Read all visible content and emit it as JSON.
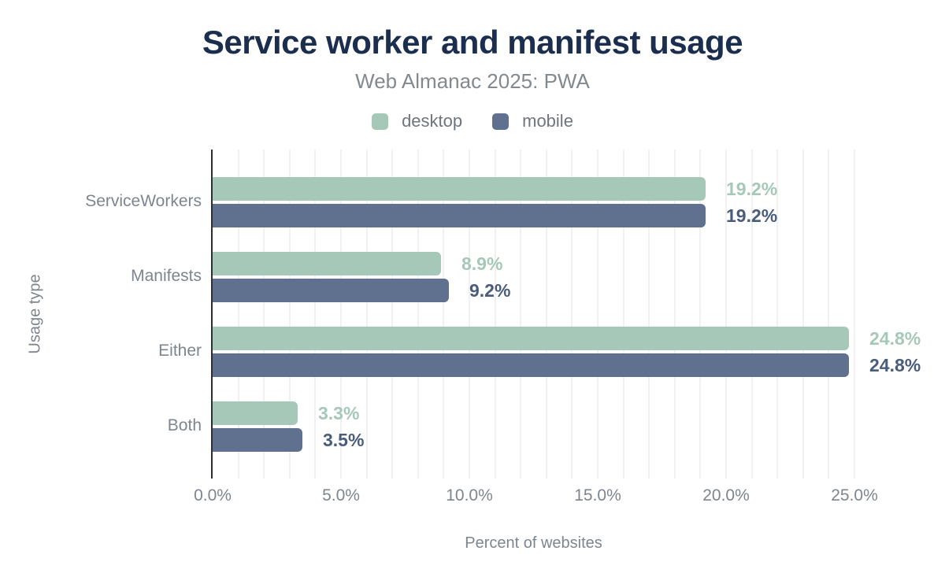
{
  "title": "Service worker and manifest usage",
  "subtitle": "Web Almanac 2025: PWA",
  "legend": [
    {
      "label": "desktop",
      "color": "#a6c8b8"
    },
    {
      "label": "mobile",
      "color": "#5f718e"
    }
  ],
  "colors": {
    "title_navy": "#1b2e4e",
    "muted_gray_text": "#7d858e",
    "desktop_bar": "#a6c8b8",
    "mobile_bar": "#5f718e",
    "desktop_value_label": "#a6c8b8",
    "mobile_value_label": "#4a5c7c",
    "gridline": "#f1f1f3",
    "axis_line": "#2e2e2e",
    "background": "#ffffff"
  },
  "chart_data": {
    "type": "bar",
    "orientation": "horizontal",
    "title": "Service worker and manifest usage",
    "subtitle": "Web Almanac 2025: PWA",
    "categories": [
      "ServiceWorkers",
      "Manifests",
      "Either",
      "Both"
    ],
    "series": [
      {
        "name": "desktop",
        "color": "#a6c8b8",
        "label_color": "#a6c8b8",
        "values": [
          19.2,
          8.9,
          24.8,
          3.3
        ],
        "value_labels": [
          "19.2%",
          "8.9%",
          "24.8%",
          "3.3%"
        ]
      },
      {
        "name": "mobile",
        "color": "#5f718e",
        "label_color": "#4a5c7c",
        "values": [
          19.2,
          9.2,
          24.8,
          3.5
        ],
        "value_labels": [
          "19.2%",
          "9.2%",
          "24.8%",
          "3.5%"
        ]
      }
    ],
    "xlabel": "Percent of websites",
    "ylabel": "Usage type",
    "xlim": [
      0,
      25
    ],
    "xticks": [
      0,
      5,
      10,
      15,
      20,
      25
    ],
    "xtick_labels": [
      "0.0%",
      "5.0%",
      "10.0%",
      "15.0%",
      "20.0%",
      "25.0%"
    ],
    "grid": {
      "vertical": true,
      "minor_step_percent": 1
    },
    "legend_position": "top-center"
  }
}
